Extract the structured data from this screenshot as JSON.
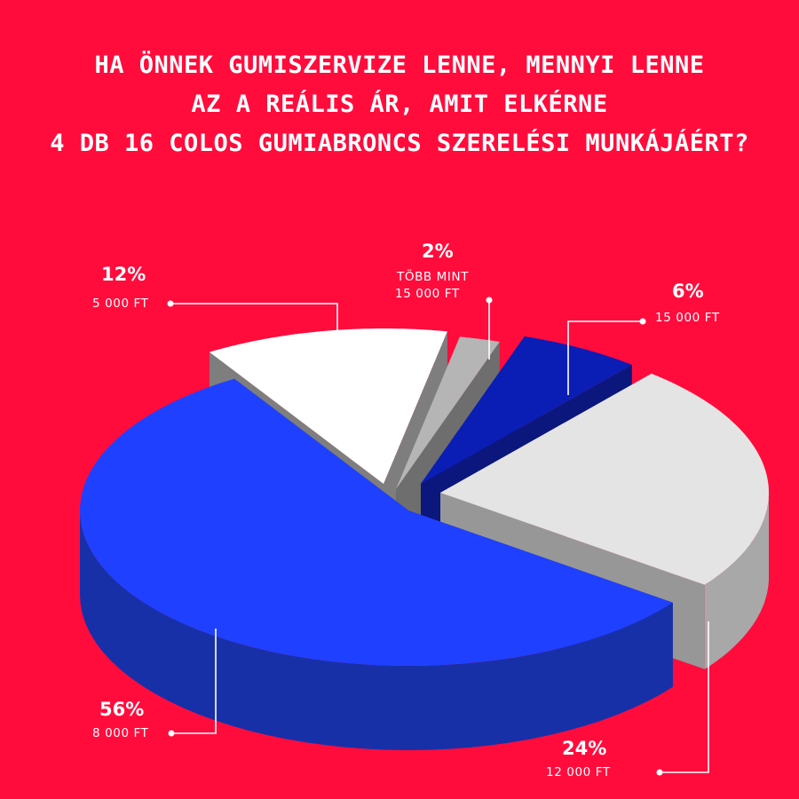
{
  "title": {
    "line1": "HA ÖNNEK GUMISZERVIZE LENNE, MENNYI LENNE",
    "line2": "AZ A REÁLIS ÁR, AMIT ELKÉRNE",
    "line3": "4 DB 16 COLOS GUMIABRONCS SZERELÉSI MUNKÁJÁÉRT?"
  },
  "chart_data": {
    "type": "pie",
    "slices": [
      {
        "percent": "12%",
        "label": "5 000 FT",
        "value": 12,
        "color_top": "#ffffff",
        "color_side": "#8c8c8c"
      },
      {
        "percent": "2%",
        "label_lines": [
          "TÖBB MINT",
          "15 000 FT"
        ],
        "value": 2,
        "color_top": "#b5b5b5",
        "color_side": "#7a7a7a"
      },
      {
        "percent": "6%",
        "label": "15 000 FT",
        "value": 6,
        "color_top": "#0a1eb6",
        "color_side": "#0c1a8a"
      },
      {
        "percent": "24%",
        "label": "12 000 FT",
        "value": 24,
        "color_top": "#e4e4e4",
        "color_side": "#a8a8a8"
      },
      {
        "percent": "56%",
        "label": "8 000 FT",
        "value": 56,
        "color_top": "#2040ff",
        "color_side": "#1730a8"
      }
    ]
  }
}
